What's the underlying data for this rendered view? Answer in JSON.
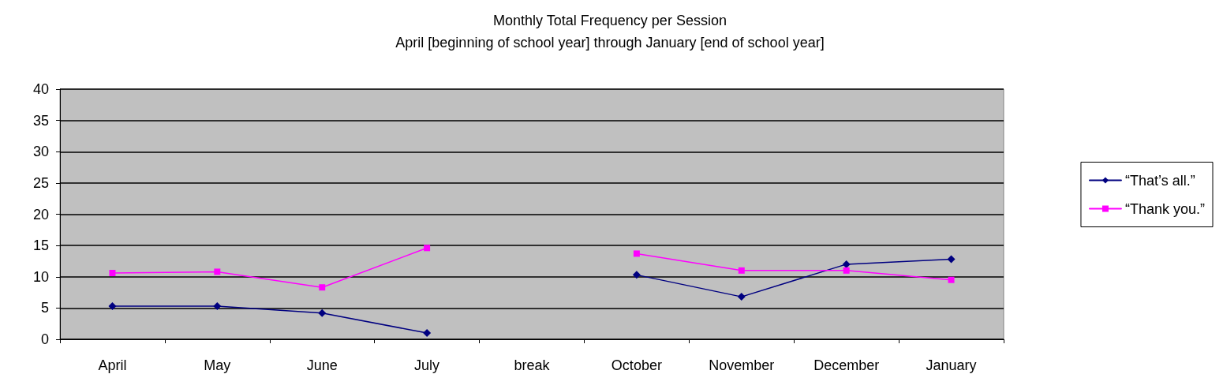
{
  "chart_data": {
    "type": "line",
    "title": "Monthly Total Frequency per Session",
    "subtitle": "April [beginning of school year] through January [end of school year]",
    "categories": [
      "April",
      "May",
      "June",
      "July",
      "break",
      "October",
      "November",
      "December",
      "January"
    ],
    "series": [
      {
        "name": "“That’s all.”",
        "color": "#000080",
        "marker": "diamond",
        "values": [
          5.3,
          5.3,
          4.2,
          1.0,
          null,
          10.3,
          6.8,
          12,
          12.8
        ]
      },
      {
        "name": "“Thank you.”",
        "color": "#ff00ff",
        "marker": "square",
        "values": [
          10.6,
          10.8,
          8.3,
          14.6,
          null,
          13.7,
          11,
          11,
          9.5
        ]
      }
    ],
    "ylim": [
      0,
      40
    ],
    "yticks": [
      0,
      5,
      10,
      15,
      20,
      25,
      30,
      35,
      40
    ],
    "grid": "y",
    "legend": "right",
    "line_style": "solid"
  }
}
